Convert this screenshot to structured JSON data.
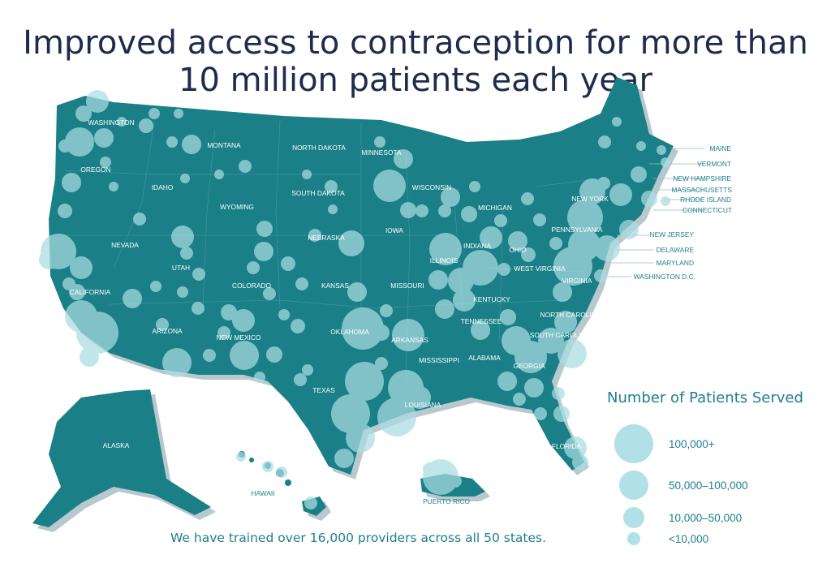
{
  "title": {
    "line1": "Improved access to contraception for more than",
    "line2": "10 million patients each year"
  },
  "colors": {
    "land": "#1a7f87",
    "shadow": "#b8c9cd",
    "bubble": "#a9dde3",
    "title": "#1f2b4d",
    "accent": "#1f7f8a"
  },
  "map": {
    "state_labels": [
      "WASHINGTON",
      "OREGON",
      "CALIFORNIA",
      "NEVADA",
      "IDAHO",
      "MONTANA",
      "WYOMING",
      "UTAH",
      "ARIZONA",
      "COLORADO",
      "NEW MEXICO",
      "NORTH DAKOTA",
      "SOUTH DAKOTA",
      "NEBRASKA",
      "KANSAS",
      "OKLAHOMA",
      "TEXAS",
      "MINNESOTA",
      "IOWA",
      "MISSOURI",
      "ARKANSAS",
      "LOUISIANA",
      "WISCONSIN",
      "ILLINOIS",
      "MICHIGAN",
      "INDIANA",
      "OHIO",
      "KENTUCKY",
      "TENNESSEE",
      "MISSISSIPPI",
      "ALABAMA",
      "GEORGIA",
      "FLORIDA",
      "SOUTH CAROLINA",
      "NORTH CAROLINA",
      "VIRGINIA",
      "WEST VIRGINIA",
      "PENNSYLVANIA",
      "NEW YORK",
      "ALASKA",
      "HAWAII",
      "PUERTO RICO"
    ],
    "northeast_labels": [
      "MAINE",
      "VERMONT",
      "NEW HAMPSHIRE",
      "MASSACHUSETTS",
      "RHODE ISLAND",
      "CONNECTICUT",
      "NEW JERSEY",
      "DELAWARE",
      "MARYLAND",
      "WASHINGTON D.C."
    ]
  },
  "legend": {
    "title": "Number of Patients Served",
    "items": [
      {
        "label": "100,000+"
      },
      {
        "label": "50,000–100,000"
      },
      {
        "label": "10,000–50,000"
      },
      {
        "label": "<10,000"
      }
    ]
  },
  "footer": {
    "note": "We have trained over 16,000 providers across all 50 states."
  }
}
